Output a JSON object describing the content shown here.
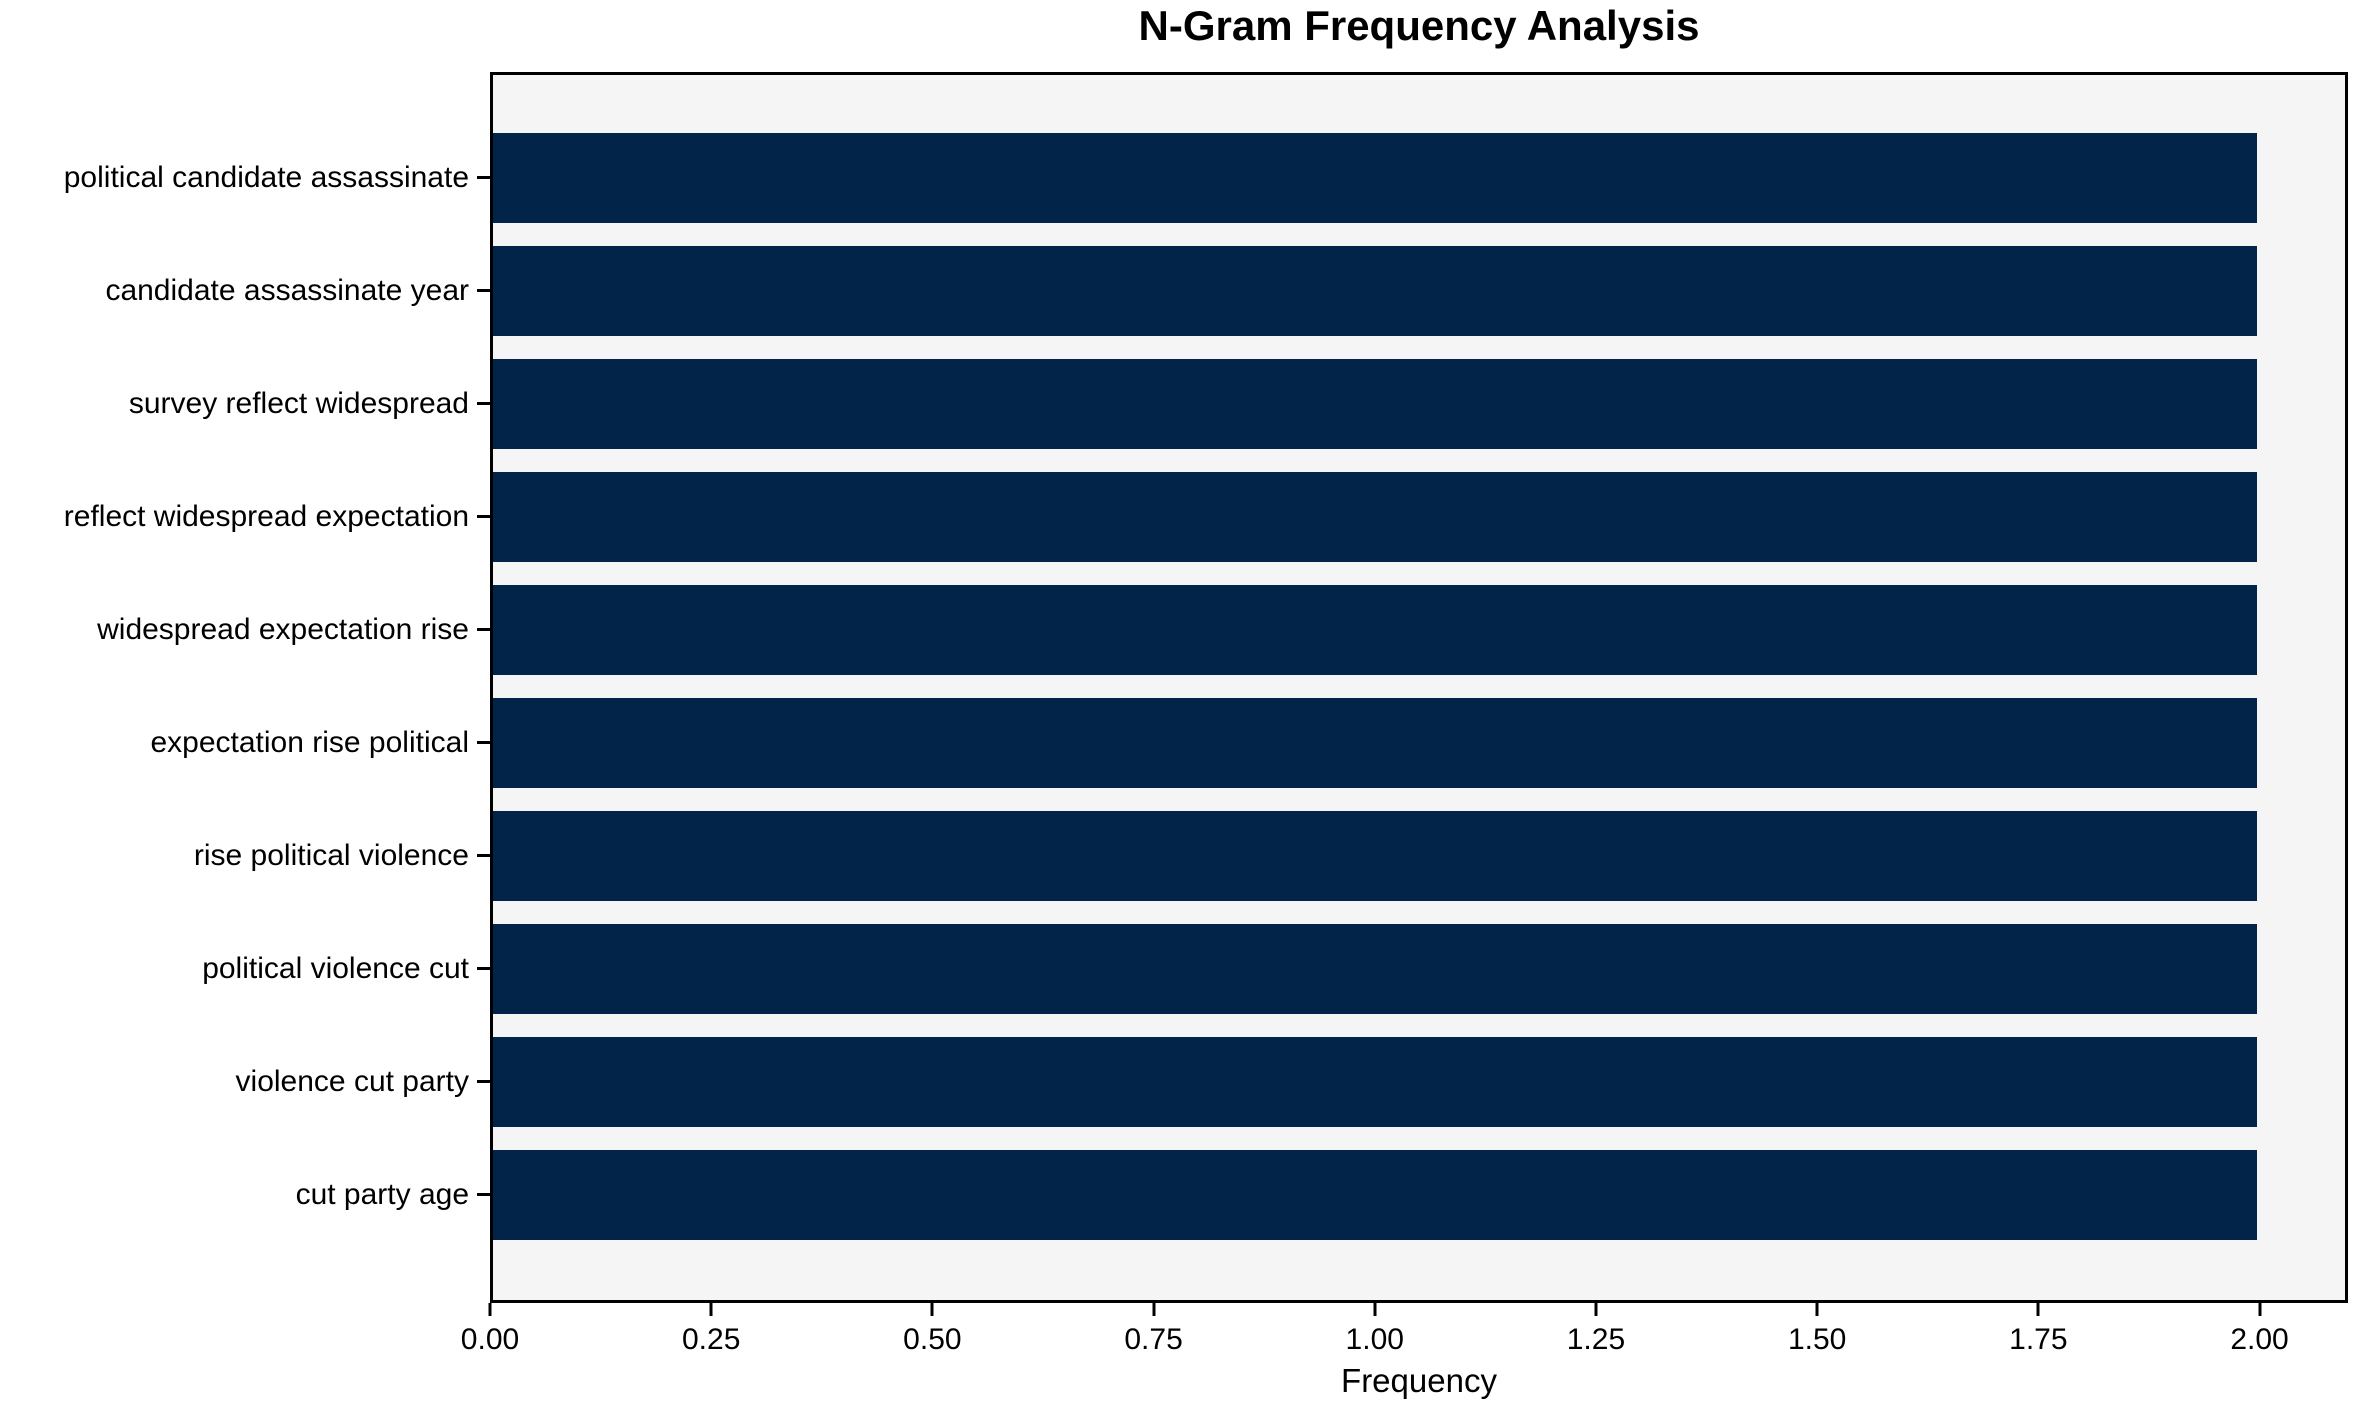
{
  "chart_data": {
    "type": "bar",
    "orientation": "horizontal",
    "title": "N-Gram Frequency Analysis",
    "xlabel": "Frequency",
    "ylabel": "",
    "categories": [
      "political candidate assassinate",
      "candidate assassinate year",
      "survey reflect widespread",
      "reflect widespread expectation",
      "widespread expectation rise",
      "expectation rise political",
      "rise political violence",
      "political violence cut",
      "violence cut party",
      "cut party age"
    ],
    "values": [
      2,
      2,
      2,
      2,
      2,
      2,
      2,
      2,
      2,
      2
    ],
    "xlim": [
      0,
      2.1
    ],
    "xticks": [
      0.0,
      0.25,
      0.5,
      0.75,
      1.0,
      1.25,
      1.5,
      1.75,
      2.0
    ],
    "xtick_labels": [
      "0.00",
      "0.25",
      "0.50",
      "0.75",
      "1.00",
      "1.25",
      "1.50",
      "1.75",
      "2.00"
    ],
    "grid": false,
    "legend_position": "none",
    "bar_color": "#022449",
    "plot_background": "#f5f5f5",
    "figure_background": "#ffffff",
    "axis_color": "#000000"
  }
}
